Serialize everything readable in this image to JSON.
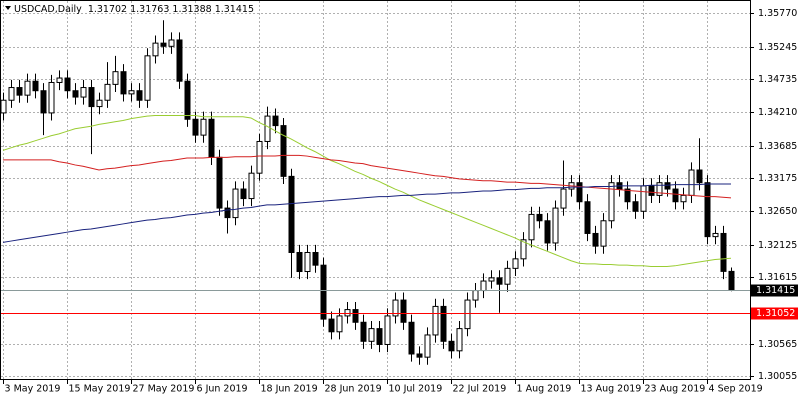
{
  "chart_data": {
    "type": "candlestick",
    "title": "USDCAD,Daily",
    "categories": [
      "3 May 2019",
      null,
      null,
      null,
      null,
      null,
      null,
      null,
      "15 May 2019",
      null,
      null,
      null,
      null,
      null,
      null,
      null,
      "27 May 2019",
      null,
      null,
      null,
      null,
      null,
      null,
      null,
      "6 Jun 2019",
      null,
      null,
      null,
      null,
      null,
      null,
      null,
      "18 Jun 2019",
      null,
      null,
      null,
      null,
      null,
      null,
      null,
      "28 Jun 2019",
      null,
      null,
      null,
      null,
      null,
      null,
      null,
      "10 Jul 2019",
      null,
      null,
      null,
      null,
      null,
      null,
      null,
      "22 Jul 2019",
      null,
      null,
      null,
      null,
      null,
      null,
      null,
      "1 Aug 2019",
      null,
      null,
      null,
      null,
      null,
      null,
      null,
      "13 Aug 2019",
      null,
      null,
      null,
      null,
      null,
      null,
      null,
      "23 Aug 2019",
      null,
      null,
      null,
      null,
      null,
      null,
      null,
      "4 Sep 2019",
      null,
      null,
      null
    ],
    "open": [
      1.342,
      1.344,
      1.346,
      1.3448,
      1.347,
      1.3455,
      1.342,
      1.3468,
      1.3475,
      1.3455,
      1.3445,
      1.346,
      1.343,
      1.344,
      1.3465,
      1.3485,
      1.345,
      1.3455,
      1.344,
      1.351,
      1.353,
      1.3525,
      1.3535,
      1.347,
      1.341,
      1.3385,
      1.341,
      1.335,
      1.327,
      1.3255,
      1.33,
      1.3285,
      1.3325,
      1.3375,
      1.3415,
      1.34,
      1.332,
      1.32,
      1.317,
      1.32,
      1.318,
      1.3095,
      1.3075,
      1.31,
      1.311,
      1.309,
      1.306,
      1.308,
      1.3055,
      1.31,
      1.3125,
      1.309,
      1.304,
      1.3035,
      1.307,
      1.3115,
      1.306,
      1.3045,
      1.308,
      1.3125,
      1.314,
      1.3155,
      1.316,
      1.315,
      1.3175,
      1.319,
      1.322,
      1.326,
      1.325,
      1.3215,
      1.327,
      1.33,
      1.331,
      1.328,
      1.323,
      1.321,
      1.325,
      1.331,
      1.33,
      1.328,
      1.3265,
      1.3305,
      1.329,
      1.331,
      1.33,
      1.328,
      1.329,
      1.333,
      1.331,
      1.3225,
      1.323,
      1.31702
    ],
    "high": [
      1.3452,
      1.3472,
      1.3472,
      1.3482,
      1.3482,
      1.3467,
      1.348,
      1.3487,
      1.3487,
      1.3467,
      1.3472,
      1.3472,
      1.3452,
      1.35,
      1.351,
      1.3497,
      1.3467,
      1.3467,
      1.3522,
      1.3542,
      1.3566,
      1.3547,
      1.3547,
      1.3482,
      1.3422,
      1.3422,
      1.3422,
      1.3362,
      1.3282,
      1.3312,
      1.3312,
      1.3337,
      1.3387,
      1.343,
      1.3427,
      1.3412,
      1.3332,
      1.3212,
      1.3212,
      1.3212,
      1.3192,
      1.3107,
      1.3112,
      1.3122,
      1.3122,
      1.3102,
      1.3092,
      1.3092,
      1.3112,
      1.3137,
      1.3137,
      1.3102,
      1.3052,
      1.3082,
      1.3127,
      1.3127,
      1.3072,
      1.3092,
      1.3137,
      1.3152,
      1.3167,
      1.3172,
      1.3172,
      1.3187,
      1.3202,
      1.3232,
      1.3272,
      1.3272,
      1.3262,
      1.3282,
      1.3345,
      1.3322,
      1.3322,
      1.3292,
      1.3242,
      1.3262,
      1.3322,
      1.3322,
      1.3312,
      1.3292,
      1.3317,
      1.3317,
      1.3322,
      1.3322,
      1.3312,
      1.3302,
      1.3342,
      1.338,
      1.3322,
      1.3242,
      1.3242,
      1.31763
    ],
    "low": [
      1.3408,
      1.3428,
      1.3436,
      1.3436,
      1.3443,
      1.3385,
      1.3408,
      1.3456,
      1.3443,
      1.3433,
      1.3433,
      1.3355,
      1.3418,
      1.3428,
      1.3453,
      1.3438,
      1.3438,
      1.3428,
      1.3428,
      1.3498,
      1.3513,
      1.3513,
      1.3458,
      1.3398,
      1.3373,
      1.3373,
      1.3338,
      1.3258,
      1.323,
      1.3243,
      1.3273,
      1.3273,
      1.3313,
      1.3363,
      1.3388,
      1.3308,
      1.316,
      1.3158,
      1.3158,
      1.3168,
      1.3083,
      1.3063,
      1.3063,
      1.3088,
      1.3078,
      1.3048,
      1.3048,
      1.3043,
      1.3043,
      1.3088,
      1.3078,
      1.3028,
      1.3023,
      1.3023,
      1.3058,
      1.3048,
      1.3033,
      1.3033,
      1.3068,
      1.3113,
      1.3128,
      1.3143,
      1.3105,
      1.3138,
      1.3163,
      1.3178,
      1.3208,
      1.3238,
      1.3203,
      1.3203,
      1.3258,
      1.3288,
      1.3268,
      1.3218,
      1.3198,
      1.3198,
      1.3238,
      1.3288,
      1.3268,
      1.3253,
      1.3253,
      1.3278,
      1.3278,
      1.3288,
      1.3268,
      1.3268,
      1.3278,
      1.3298,
      1.3213,
      1.3213,
      1.3158,
      1.31388
    ],
    "close": [
      1.344,
      1.346,
      1.3448,
      1.347,
      1.3455,
      1.342,
      1.3468,
      1.3475,
      1.3455,
      1.3445,
      1.346,
      1.343,
      1.344,
      1.3465,
      1.3485,
      1.345,
      1.3455,
      1.344,
      1.351,
      1.353,
      1.3525,
      1.3535,
      1.347,
      1.341,
      1.3385,
      1.341,
      1.335,
      1.327,
      1.3255,
      1.33,
      1.3285,
      1.3325,
      1.3375,
      1.3415,
      1.34,
      1.332,
      1.32,
      1.317,
      1.32,
      1.318,
      1.3095,
      1.3075,
      1.31,
      1.311,
      1.309,
      1.306,
      1.308,
      1.3055,
      1.31,
      1.3125,
      1.309,
      1.304,
      1.3035,
      1.307,
      1.3115,
      1.306,
      1.3045,
      1.308,
      1.3125,
      1.314,
      1.3155,
      1.316,
      1.315,
      1.3175,
      1.319,
      1.322,
      1.326,
      1.325,
      1.3215,
      1.327,
      1.33,
      1.331,
      1.328,
      1.323,
      1.321,
      1.325,
      1.331,
      1.33,
      1.328,
      1.3265,
      1.3305,
      1.329,
      1.331,
      1.33,
      1.328,
      1.329,
      1.333,
      1.331,
      1.3225,
      1.323,
      1.31702,
      1.31415
    ],
    "series": [
      {
        "color": "#9acd32",
        "values": [
          1.3361,
          1.3365,
          1.3369,
          1.3372,
          1.3376,
          1.338,
          1.3384,
          1.3387,
          1.3391,
          1.3395,
          1.3397,
          1.3399,
          1.3402,
          1.3404,
          1.3406,
          1.3408,
          1.3411,
          1.3413,
          1.3415,
          1.3416,
          1.3416,
          1.3416,
          1.3416,
          1.3416,
          1.3416,
          1.3414,
          1.3414,
          1.3414,
          1.3414,
          1.3414,
          1.3414,
          1.3412,
          1.3405,
          1.3399,
          1.3392,
          1.3385,
          1.3379,
          1.3372,
          1.3365,
          1.3359,
          1.3352,
          1.3345,
          1.334,
          1.3334,
          1.3328,
          1.3323,
          1.3317,
          1.3312,
          1.3306,
          1.33,
          1.3295,
          1.3289,
          1.3283,
          1.3278,
          1.3273,
          1.3268,
          1.3263,
          1.3258,
          1.3253,
          1.3248,
          1.3243,
          1.3238,
          1.3233,
          1.3228,
          1.3223,
          1.3217,
          1.3212,
          1.3207,
          1.3202,
          1.3197,
          1.3192,
          1.3187,
          1.3183,
          1.3182,
          1.3182,
          1.3181,
          1.3181,
          1.318,
          1.318,
          1.3179,
          1.3179,
          1.3178,
          1.3178,
          1.3178,
          1.3179,
          1.3181,
          1.3183,
          1.3185,
          1.3187,
          1.3189,
          1.319,
          1.3191
        ]
      },
      {
        "color": "#d42020",
        "values": [
          1.3346,
          1.3346,
          1.3346,
          1.3346,
          1.3346,
          1.3346,
          1.3346,
          1.3343,
          1.3341,
          1.3338,
          1.3336,
          1.3333,
          1.333,
          1.3332,
          1.3333,
          1.3335,
          1.3337,
          1.3338,
          1.334,
          1.3342,
          1.3344,
          1.3345,
          1.3347,
          1.3349,
          1.3349,
          1.3349,
          1.335,
          1.335,
          1.335,
          1.3351,
          1.3351,
          1.3351,
          1.3352,
          1.3352,
          1.3352,
          1.3353,
          1.3353,
          1.3353,
          1.3352,
          1.335,
          1.3348,
          1.3346,
          1.3345,
          1.3343,
          1.3341,
          1.334,
          1.3337,
          1.3335,
          1.3333,
          1.3331,
          1.3329,
          1.3327,
          1.3325,
          1.3323,
          1.3321,
          1.332,
          1.3318,
          1.3316,
          1.3315,
          1.3314,
          1.3313,
          1.3313,
          1.3312,
          1.3311,
          1.3311,
          1.331,
          1.3309,
          1.3309,
          1.3308,
          1.3307,
          1.3306,
          1.3305,
          1.3304,
          1.3303,
          1.3302,
          1.3301,
          1.33,
          1.3299,
          1.3298,
          1.3297,
          1.3296,
          1.3295,
          1.3294,
          1.3293,
          1.3292,
          1.3291,
          1.329,
          1.3289,
          1.3288,
          1.3288,
          1.3287,
          1.3286
        ]
      },
      {
        "color": "#1a237e",
        "values": [
          1.3216,
          1.3218,
          1.322,
          1.3222,
          1.3224,
          1.3226,
          1.3228,
          1.323,
          1.3232,
          1.3234,
          1.3236,
          1.3237,
          1.3239,
          1.3241,
          1.3243,
          1.3245,
          1.3247,
          1.3249,
          1.3251,
          1.3252,
          1.3254,
          1.3255,
          1.3257,
          1.3259,
          1.326,
          1.3262,
          1.3263,
          1.3265,
          1.3267,
          1.3268,
          1.327,
          1.3271,
          1.3273,
          1.3275,
          1.3275,
          1.3276,
          1.3277,
          1.3278,
          1.3279,
          1.328,
          1.3281,
          1.3282,
          1.3283,
          1.3284,
          1.3285,
          1.3286,
          1.3287,
          1.3288,
          1.3288,
          1.3289,
          1.329,
          1.329,
          1.3291,
          1.3292,
          1.3292,
          1.3293,
          1.3294,
          1.3294,
          1.3295,
          1.3296,
          1.3297,
          1.3297,
          1.3298,
          1.3299,
          1.3299,
          1.33,
          1.3301,
          1.3301,
          1.3302,
          1.3302,
          1.3302,
          1.3303,
          1.3303,
          1.3303,
          1.3304,
          1.3304,
          1.3304,
          1.3305,
          1.3305,
          1.3305,
          1.3305,
          1.3306,
          1.3306,
          1.3306,
          1.3307,
          1.3307,
          1.3307,
          1.3307,
          1.3308,
          1.3308,
          1.3308,
          1.3308
        ]
      }
    ],
    "levels": [
      {
        "value": 1.31052,
        "color": "#ff0000"
      }
    ],
    "ylim": [
      1.2999,
      1.3598
    ],
    "yticks": [
      {
        "value": 1.3577,
        "label": "1.35770"
      },
      1.35245,
      1.34735,
      {
        "value": 1.3421,
        "label": "1.34210"
      },
      1.33685,
      1.33175,
      {
        "value": 1.3265,
        "label": "1.32650"
      },
      1.32125,
      1.31615,
      1.30565,
      1.30055
    ],
    "grid": true
  }
}
